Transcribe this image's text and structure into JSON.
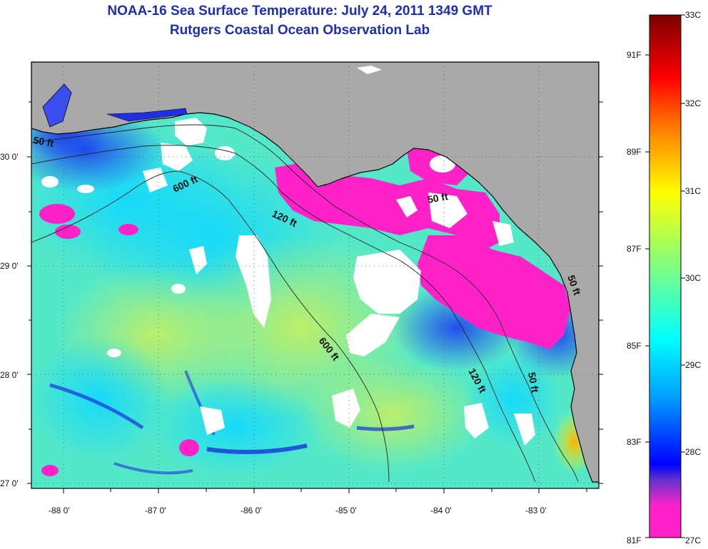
{
  "header": {
    "title": "NOAA-16 Sea Surface Temperature:  July 24, 2011 1349 GMT",
    "subtitle": "Rutgers Coastal Ocean Observation Lab"
  },
  "map": {
    "lat_ticks": [
      "30 0'",
      "29 0'",
      "28 0'",
      "27 0'"
    ],
    "lon_ticks": [
      "-88 0'",
      "-87 0'",
      "-86 0'",
      "-85 0'",
      "-84 0'",
      "-83 0'"
    ],
    "contour_labels": [
      "50 ft",
      "600 ft",
      "120 ft",
      "50 ft",
      "600 ft",
      "120 ft",
      "50 ft",
      "50 ft"
    ],
    "colors": {
      "land": "#a9a9a9",
      "cloud": "#ffffff",
      "frame": "#000000"
    }
  },
  "colorbar": {
    "celsius_labels": [
      "33C",
      "32C",
      "31C",
      "30C",
      "29C",
      "28C",
      "27C"
    ],
    "fahrenheit_labels": [
      "91F",
      "89F",
      "87F",
      "85F",
      "83F",
      "81F"
    ],
    "stops": [
      "#ff22cc",
      "#6633cc",
      "#0000ff",
      "#00a0ff",
      "#00ffff",
      "#80ff80",
      "#ffff00",
      "#ff8000",
      "#ff0000",
      "#7a0000"
    ]
  }
}
